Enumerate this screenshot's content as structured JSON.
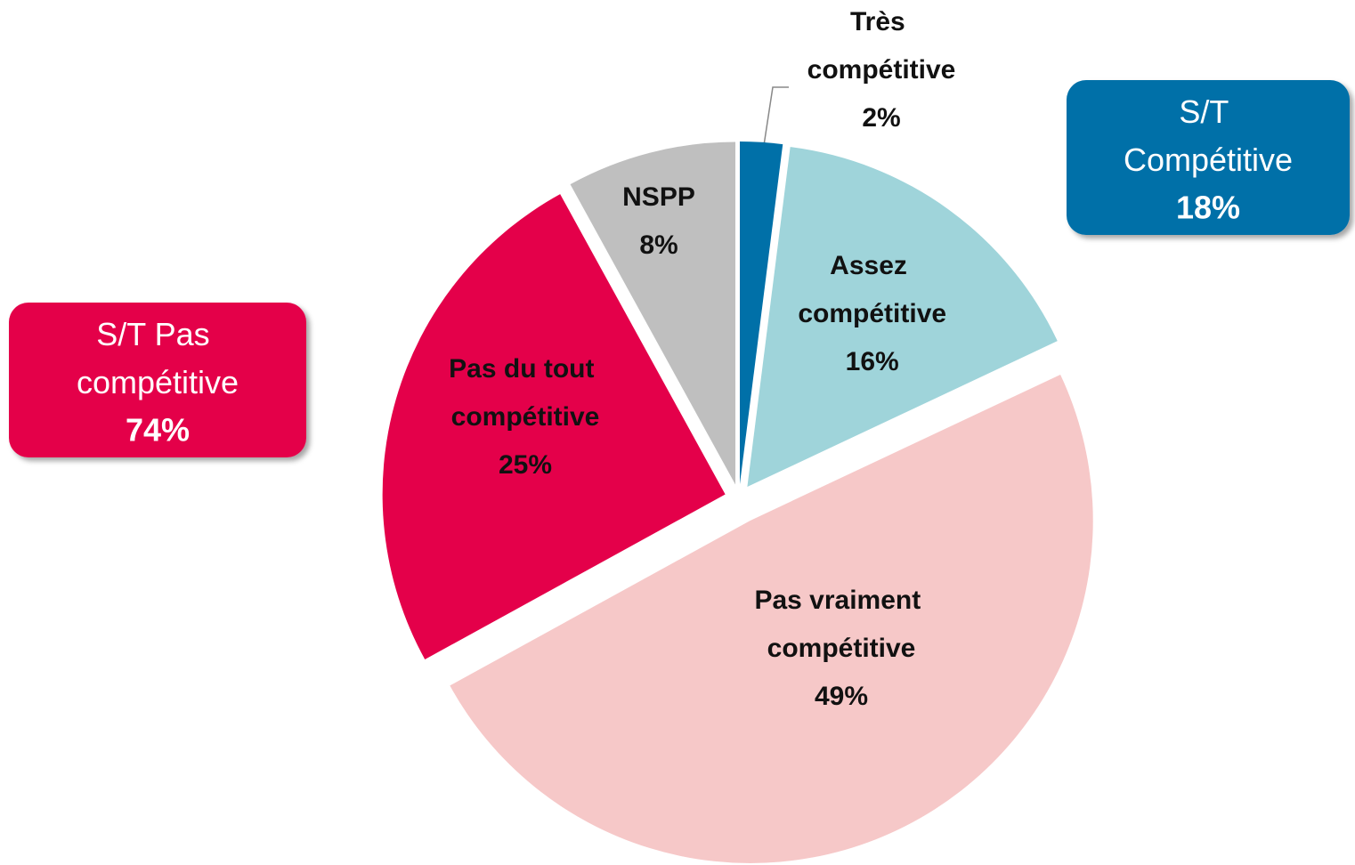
{
  "chart_data": {
    "type": "pie",
    "categories": [
      "Très compétitive",
      "Assez compétitive",
      "Pas vraiment compétitive",
      "Pas du tout compétitive",
      "NSPP"
    ],
    "values": [
      2,
      16,
      49,
      25,
      8
    ],
    "value_labels": [
      "2%",
      "16%",
      "49%",
      "25%",
      "8%"
    ],
    "colors": [
      "#0070a8",
      "#9fd4da",
      "#f6c8c8",
      "#e4004a",
      "#bfbfbf"
    ],
    "annotations": [
      {
        "text": "S/T Compétitive",
        "value": 18,
        "value_label": "18%",
        "color": "#0070a8"
      },
      {
        "text": "S/T Pas compétitive",
        "value": 74,
        "value_label": "74%",
        "color": "#e4004a"
      }
    ]
  }
}
